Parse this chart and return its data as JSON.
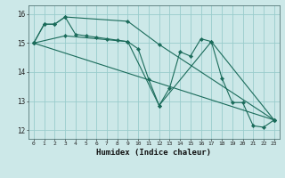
{
  "xlabel": "Humidex (Indice chaleur)",
  "bg_color": "#cce8e8",
  "grid_color": "#99cccc",
  "line_color": "#1a6b5a",
  "xlim": [
    -0.5,
    23.5
  ],
  "ylim": [
    11.7,
    16.3
  ],
  "xticks": [
    0,
    1,
    2,
    3,
    4,
    5,
    6,
    7,
    8,
    9,
    10,
    11,
    12,
    13,
    14,
    15,
    16,
    17,
    18,
    19,
    20,
    21,
    22,
    23
  ],
  "yticks": [
    12,
    13,
    14,
    15,
    16
  ],
  "series": [
    {
      "x": [
        0,
        1,
        2,
        3,
        4,
        5,
        6,
        7,
        8,
        9,
        10,
        11,
        12,
        13,
        14,
        15,
        16,
        17,
        18,
        19,
        20,
        21,
        22,
        23
      ],
      "y": [
        15.0,
        15.65,
        15.65,
        15.9,
        15.3,
        15.25,
        15.2,
        15.15,
        15.1,
        15.05,
        14.8,
        13.75,
        12.85,
        13.45,
        14.7,
        14.55,
        15.15,
        15.05,
        13.8,
        12.95,
        12.95,
        12.15,
        12.1,
        12.35
      ]
    },
    {
      "x": [
        0,
        1,
        2,
        3,
        9,
        12,
        23
      ],
      "y": [
        15.0,
        15.65,
        15.65,
        15.9,
        15.75,
        14.95,
        12.35
      ]
    },
    {
      "x": [
        0,
        3,
        9,
        12,
        17,
        23
      ],
      "y": [
        15.0,
        15.25,
        15.05,
        12.85,
        15.05,
        12.35
      ]
    },
    {
      "x": [
        0,
        23
      ],
      "y": [
        15.0,
        12.35
      ]
    }
  ]
}
